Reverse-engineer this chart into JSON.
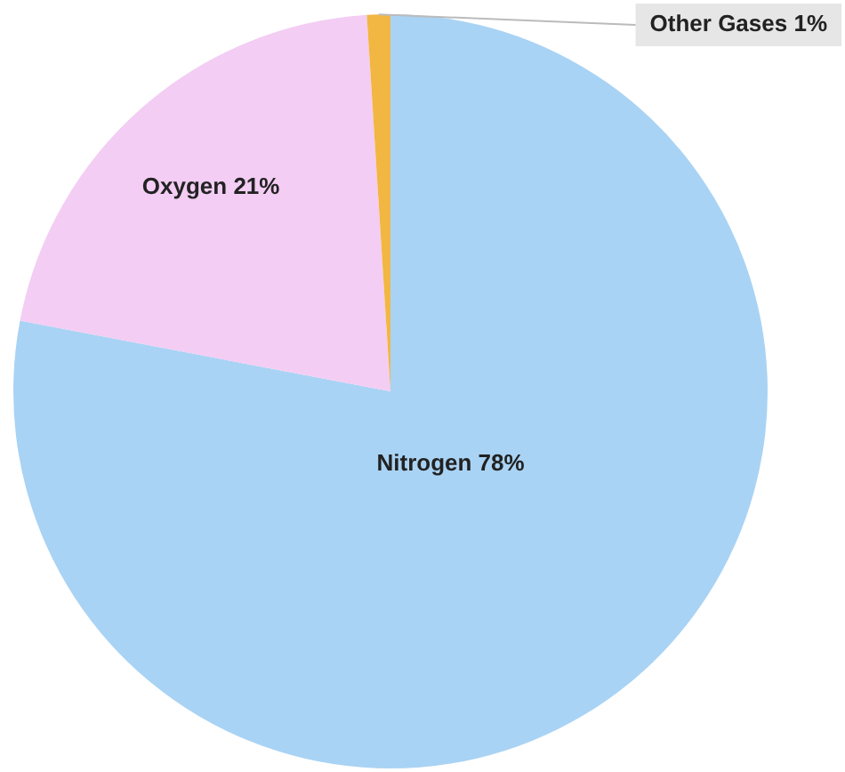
{
  "chart_data": {
    "type": "pie",
    "categories": [
      "Nitrogen",
      "Oxygen",
      "Other Gases"
    ],
    "values": [
      78,
      21,
      1
    ],
    "value_labels": [
      "78%",
      "21%",
      "1%"
    ],
    "colors": [
      "#a9d3f4",
      "#f3cdf3",
      "#f2b642"
    ],
    "legend": false
  }
}
